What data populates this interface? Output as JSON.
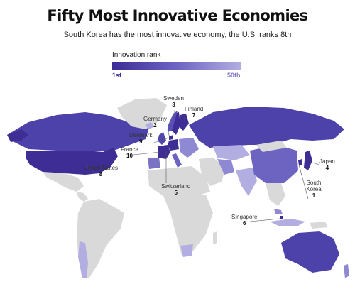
{
  "header": {
    "title": "Fifty Most Innovative Economies",
    "subtitle": "South Korea has the most innovative economy, the U.S. ranks 8th"
  },
  "legend": {
    "title": "Innovation rank",
    "min_label": "1st",
    "max_label": "50th",
    "color_start": "#3d2d94",
    "color_end": "#b3aee2"
  },
  "colors": {
    "unranked": "#d9d9d9",
    "ocean": "#ffffff",
    "rank_top": "#3d2d94",
    "rank_mid": "#6d64c2",
    "rank_low": "#b3aee2"
  },
  "callouts": [
    {
      "country": "Sweden",
      "rank": "3"
    },
    {
      "country": "Finland",
      "rank": "7"
    },
    {
      "country": "Germany",
      "rank": "2"
    },
    {
      "country": "Denmark",
      "rank": "9"
    },
    {
      "country": "France",
      "rank": "10"
    },
    {
      "country": "Japan",
      "rank": "4"
    },
    {
      "country": "United States",
      "rank": "8"
    },
    {
      "country": "Switzerland",
      "rank": "5"
    },
    {
      "country": "South Korea",
      "rank": "1"
    },
    {
      "country": "Singapore",
      "rank": "6"
    }
  ]
}
